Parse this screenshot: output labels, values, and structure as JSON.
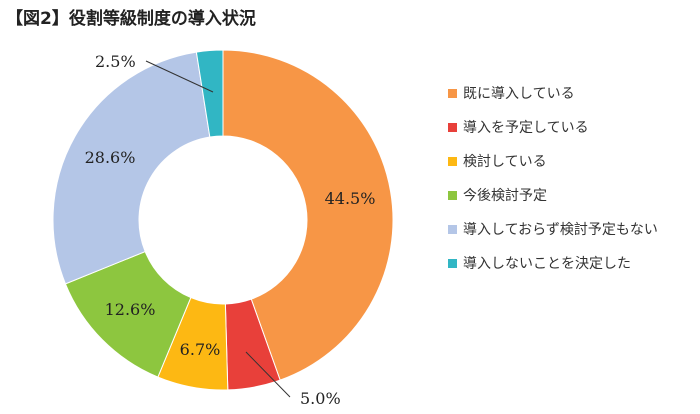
{
  "title": "【図2】役割等級制度の導入状況",
  "chart_data": {
    "type": "pie",
    "donut": true,
    "legend_position": "right",
    "slices": [
      {
        "label": "既に導入している",
        "value": 44.5,
        "display": "44.5%",
        "color": "#F79646"
      },
      {
        "label": "導入を予定している",
        "value": 5.0,
        "display": "5.0%",
        "color": "#E8403A"
      },
      {
        "label": "検討している",
        "value": 6.7,
        "display": "6.7%",
        "color": "#FDB813"
      },
      {
        "label": "今後検討予定",
        "value": 12.6,
        "display": "12.6%",
        "color": "#8DC63F"
      },
      {
        "label": "導入しておらず検討予定もない",
        "value": 28.6,
        "display": "28.6%",
        "color": "#B4C6E7"
      },
      {
        "label": "導入しないことを決定した",
        "value": 2.5,
        "display": "2.5%",
        "color": "#31B6C4"
      }
    ]
  }
}
